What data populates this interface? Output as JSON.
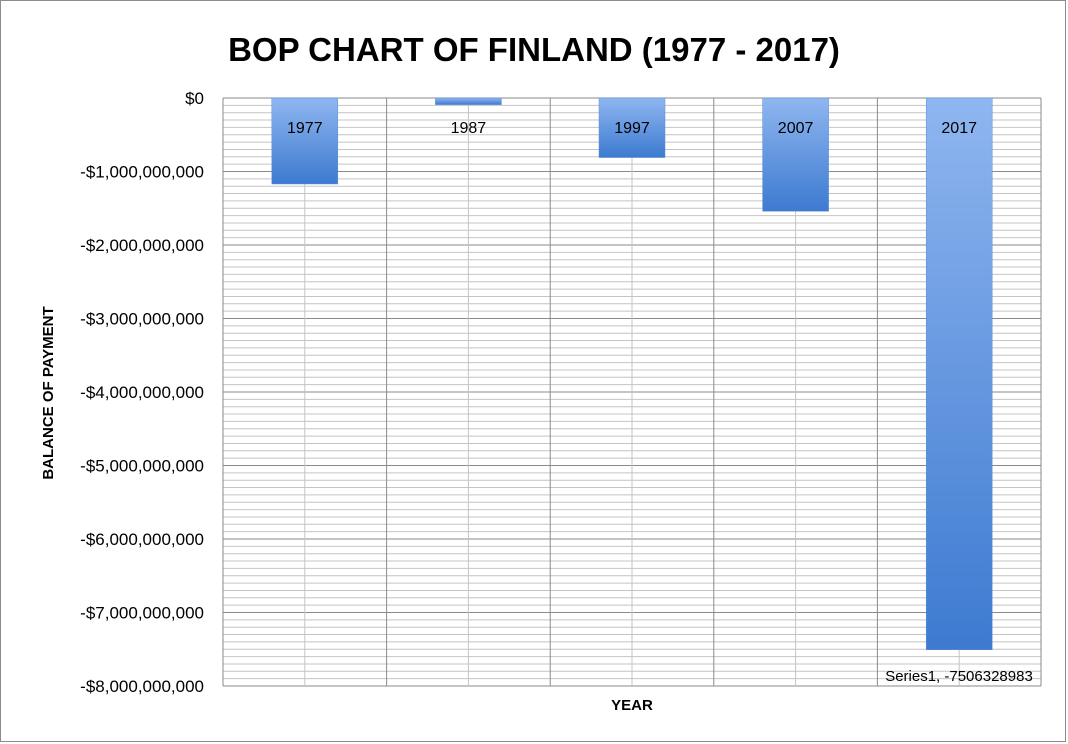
{
  "chart_data": {
    "type": "bar",
    "title": "BOP CHART OF FINLAND (1977 - 2017)",
    "xlabel": "YEAR",
    "ylabel": "BALANCE  OF PAYMENT",
    "categories": [
      "1977",
      "1987",
      "1997",
      "2007",
      "2017"
    ],
    "series": [
      {
        "values": [
          -1170000000,
          -90000000,
          -810000000,
          -1540000000,
          -7506328983
        ],
        "color": "#4a86d8"
      }
    ],
    "ylim": [
      -8000000000,
      0
    ],
    "yticks": [
      {
        "value": 0,
        "label": "$0"
      },
      {
        "value": -1000000000,
        "label": "-$1,000,000,000"
      },
      {
        "value": -2000000000,
        "label": "-$2,000,000,000"
      },
      {
        "value": -3000000000,
        "label": "-$3,000,000,000"
      },
      {
        "value": -4000000000,
        "label": "-$4,000,000,000"
      },
      {
        "value": -5000000000,
        "label": "-$5,000,000,000"
      },
      {
        "value": -6000000000,
        "label": "-$6,000,000,000"
      },
      {
        "value": -7000000000,
        "label": "-$7,000,000,000"
      },
      {
        "value": -8000000000,
        "label": "-$8,000,000,000"
      }
    ],
    "grid": true,
    "annotation": "Series1, -7506328983"
  }
}
